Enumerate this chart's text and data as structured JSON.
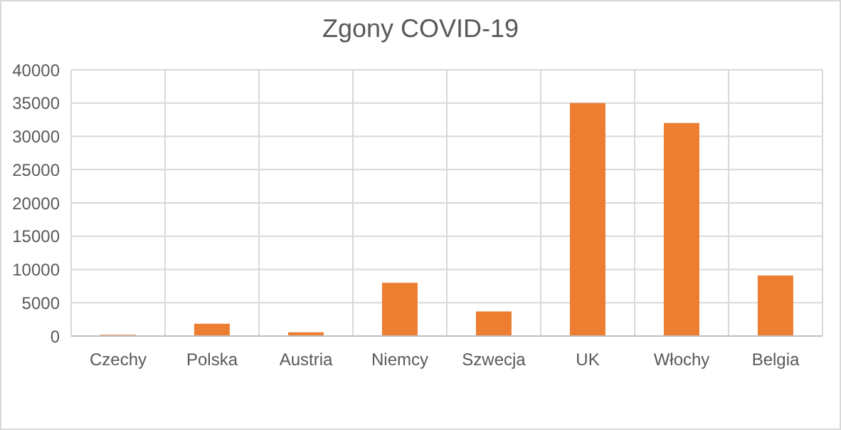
{
  "chart_data": {
    "type": "bar",
    "title": "Zgony COVID-19",
    "categories": [
      "Czechy",
      "Polska",
      "Austria",
      "Niemcy",
      "Szwecja",
      "UK",
      "Włochy",
      "Belgia"
    ],
    "values": [
      200,
      1850,
      550,
      8000,
      3700,
      35000,
      32000,
      9100
    ],
    "color": "#ed7d31",
    "ylim": [
      0,
      40000
    ],
    "yticks": [
      0,
      5000,
      10000,
      15000,
      20000,
      25000,
      30000,
      35000,
      40000
    ],
    "grid": true
  }
}
